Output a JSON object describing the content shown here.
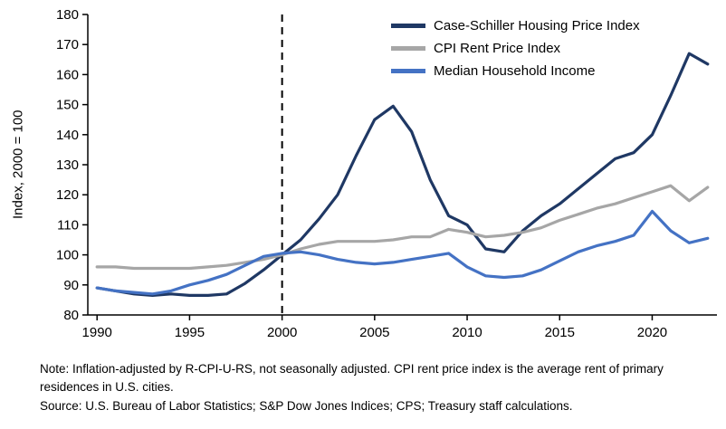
{
  "figure": {
    "ylabel": "Index, 2000 = 100",
    "note": "Note: Inflation-adjusted by R-CPI-U-RS, not seasonally adjusted. CPI rent price index is the average rent of primary residences in U.S. cities.",
    "source": "Source: U.S. Bureau of Labor Statistics; S&P Dow Jones Indices; CPS; Treasury staff calculations."
  },
  "chart_data": {
    "type": "line",
    "title": "",
    "xlabel": "",
    "ylabel": "Index, 2000 = 100",
    "grid": false,
    "legend_position": "upper right",
    "xlim": [
      1989.5,
      2023.5
    ],
    "ylim": [
      80,
      180
    ],
    "yticks": [
      80,
      90,
      100,
      110,
      120,
      130,
      140,
      150,
      160,
      170,
      180
    ],
    "xticks": [
      1990,
      1995,
      2000,
      2005,
      2010,
      2015,
      2020
    ],
    "annotations": [
      {
        "type": "vline",
        "x": 2000,
        "style": "dashed",
        "color": "#000000"
      }
    ],
    "x": [
      1990,
      1991,
      1992,
      1993,
      1994,
      1995,
      1996,
      1997,
      1998,
      1999,
      2000,
      2001,
      2002,
      2003,
      2004,
      2005,
      2006,
      2007,
      2008,
      2009,
      2010,
      2011,
      2012,
      2013,
      2014,
      2015,
      2016,
      2017,
      2018,
      2019,
      2020,
      2021,
      2022,
      2023
    ],
    "series": [
      {
        "name": "Case-Schiller Housing Price Index",
        "color": "#1f3864",
        "values": [
          89,
          88,
          87,
          86.5,
          87,
          86.5,
          86.5,
          87,
          90.5,
          95,
          100,
          105,
          112,
          120,
          133,
          145,
          149.5,
          141,
          125,
          113,
          110,
          102,
          101,
          108,
          113,
          117,
          122,
          127,
          132,
          134,
          140,
          153,
          167,
          163.5
        ]
      },
      {
        "name": "CPI Rent Price Index",
        "color": "#a6a6a6",
        "values": [
          96,
          96,
          95.5,
          95.5,
          95.5,
          95.5,
          96,
          96.5,
          97.5,
          98.5,
          100,
          102,
          103.5,
          104.5,
          104.5,
          104.5,
          105,
          106,
          106,
          108.5,
          107.5,
          106,
          106.5,
          107.5,
          109,
          111.5,
          113.5,
          115.5,
          117,
          119,
          121,
          123,
          118,
          122.5
        ]
      },
      {
        "name": "Median Household Income",
        "color": "#4472c4",
        "values": [
          89,
          88,
          87.5,
          87,
          88,
          90,
          91.5,
          93.5,
          96.5,
          99.5,
          100.5,
          101,
          100,
          98.5,
          97.5,
          97,
          97.5,
          98.5,
          99.5,
          100.5,
          96,
          93,
          92.5,
          93,
          95,
          98,
          101,
          103,
          104.5,
          106.5,
          114.5,
          108,
          104,
          105.5
        ]
      }
    ]
  }
}
